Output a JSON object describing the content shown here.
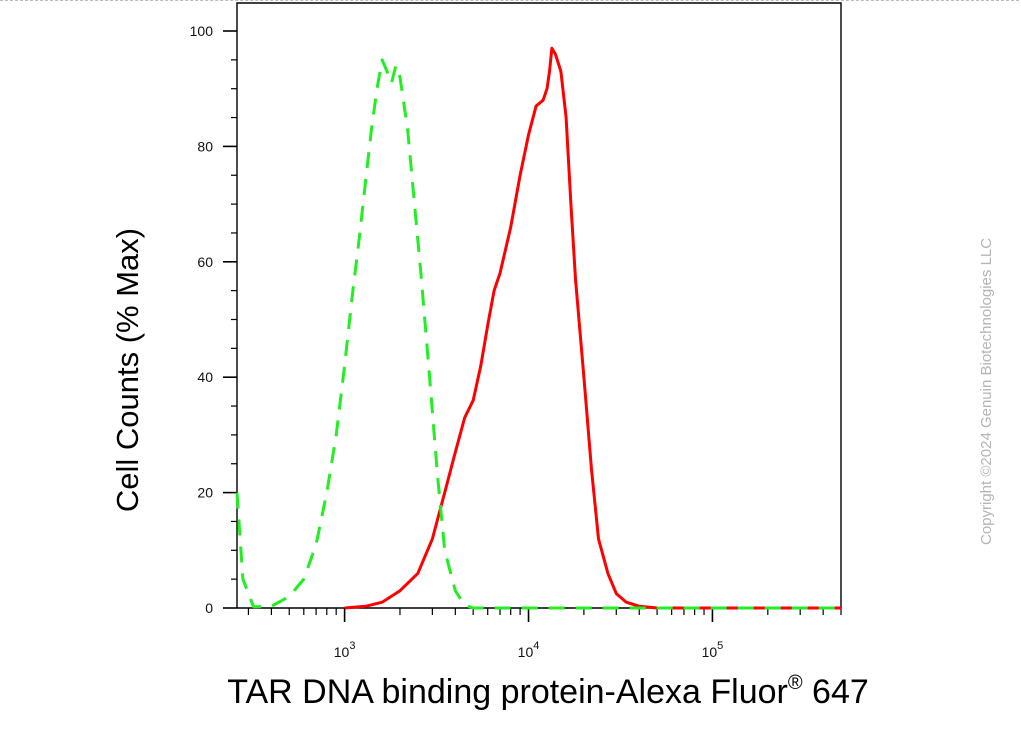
{
  "chart_data": {
    "type": "area",
    "xlabel": "TAR DNA binding protein-Alexa Fluor",
    "xlabel_superscript": "®",
    "xlabel_suffix": " 647",
    "ylabel": "Cell Counts (% Max)",
    "x_scale": "log",
    "xlim": [
      260,
      500000
    ],
    "ylim": [
      0,
      103
    ],
    "y_ticks": [
      0,
      20,
      40,
      60,
      80,
      100
    ],
    "x_ticks": [
      {
        "value": 1000,
        "base": "10",
        "exp": "3"
      },
      {
        "value": 10000,
        "base": "10",
        "exp": "4"
      },
      {
        "value": 100000,
        "base": "10",
        "exp": "5"
      }
    ],
    "grid": false,
    "series": [
      {
        "color": "#ff0000",
        "style": "solid",
        "x": [
          1000,
          1300,
          1600,
          2000,
          2500,
          3000,
          3500,
          4000,
          4500,
          5000,
          5500,
          6000,
          6500,
          7000,
          8000,
          9000,
          10000,
          11000,
          12000,
          12600,
          13000,
          13400,
          14000,
          15000,
          16000,
          17000,
          18000,
          20000,
          22000,
          24000,
          27000,
          30000,
          34000,
          40000,
          50000,
          100000,
          500000
        ],
        "values": [
          0,
          0.3,
          1,
          3,
          6,
          12,
          20,
          27,
          33,
          36,
          42,
          49,
          55,
          58,
          66,
          75,
          82,
          87,
          88,
          90,
          93,
          97,
          96,
          93,
          85,
          70,
          57,
          40,
          24,
          12,
          6,
          2.5,
          1,
          0.3,
          0,
          0,
          0
        ]
      },
      {
        "color": "#22ee22",
        "style": "dashed",
        "x": [
          260,
          280,
          320,
          400,
          500,
          600,
          700,
          800,
          900,
          1000,
          1100,
          1200,
          1300,
          1400,
          1500,
          1600,
          1700,
          1800,
          1900,
          2000,
          2200,
          2400,
          2600,
          2900,
          3200,
          3500,
          4000,
          4500,
          5000,
          7000,
          100000,
          500000
        ],
        "values": [
          20,
          5,
          0.2,
          0.3,
          2,
          5,
          11,
          20,
          30,
          42,
          54,
          64,
          74,
          83,
          90,
          95,
          93,
          91,
          94,
          92,
          83,
          70,
          58,
          40,
          23,
          10,
          3,
          0.5,
          0,
          0,
          0,
          0
        ]
      }
    ]
  },
  "watermark": "Copyright ©2024 Genuin Biotechnologies LLC"
}
